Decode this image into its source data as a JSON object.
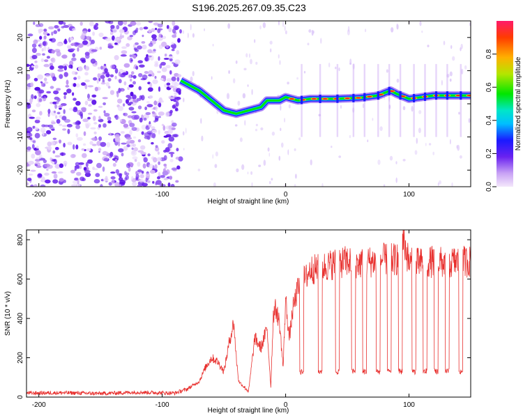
{
  "title": "S196.2025.267.09.35.C23",
  "colors": {
    "axis": "#000000",
    "snr_line": "#e8302e",
    "background": "#ffffff"
  },
  "chart_data": [
    {
      "type": "heatmap",
      "name": "spectrogram",
      "xlabel": "Height of straight line (km)",
      "ylabel": "Frequency (Hz)",
      "xlim": [
        -210,
        150
      ],
      "ylim": [
        -25,
        25
      ],
      "x_ticks": [
        -200,
        -100,
        0,
        100
      ],
      "y_ticks": [
        -20,
        -10,
        0,
        10,
        20
      ],
      "x_tick_labels": [
        "-200",
        "-100",
        "0",
        "100"
      ],
      "y_tick_labels": [
        "-20",
        "-10",
        "0",
        "10",
        "20"
      ],
      "noise_region_km": [
        -210,
        -85
      ],
      "ridge": {
        "description": "dominant frequency ridge",
        "x_km": [
          -85,
          -70,
          -60,
          -50,
          -40,
          -30,
          -20,
          -15,
          -5,
          0,
          10,
          20,
          40,
          60,
          75,
          85,
          90,
          100,
          120,
          150
        ],
        "freq_hz": [
          7,
          4,
          1,
          -2,
          -3,
          -2,
          -1,
          1,
          1,
          2,
          1,
          1.5,
          1.5,
          1.8,
          2.5,
          4,
          3,
          1.5,
          2.5,
          2.5
        ]
      },
      "colorbar": {
        "label": "Normalized spectral amplitude",
        "range": [
          0,
          1
        ],
        "ticks": [
          0.0,
          0.2,
          0.4,
          0.6,
          0.8
        ],
        "tick_labels": [
          "0.0",
          "0.2",
          "0.4",
          "0.6",
          "0.8"
        ]
      }
    },
    {
      "type": "line",
      "name": "snr",
      "xlabel": "Height of straight line (km)",
      "ylabel": "SNR (10 * v/v)",
      "xlim": [
        -210,
        150
      ],
      "ylim": [
        0,
        850
      ],
      "x_ticks": [
        -200,
        -100,
        0,
        100
      ],
      "y_ticks": [
        0,
        200,
        400,
        600,
        800
      ],
      "x_tick_labels": [
        "-200",
        "-100",
        "0",
        "100"
      ],
      "y_tick_labels": [
        "0",
        "200",
        "400",
        "600",
        "800"
      ],
      "series": [
        {
          "name": "SNR",
          "x": [
            -210,
            -180,
            -150,
            -120,
            -90,
            -80,
            -70,
            -65,
            -60,
            -55,
            -50,
            -45,
            -42,
            -40,
            -38,
            -35,
            -30,
            -25,
            -20,
            -15,
            -12,
            -10,
            -8,
            -5,
            -2,
            0,
            3,
            6,
            10,
            13,
            16,
            20,
            25,
            30,
            40,
            50,
            60,
            70,
            80,
            90,
            95,
            100,
            110,
            120,
            130,
            140,
            150
          ],
          "y": [
            20,
            22,
            18,
            25,
            20,
            40,
            80,
            150,
            200,
            180,
            130,
            300,
            380,
            200,
            80,
            60,
            30,
            300,
            250,
            350,
            50,
            420,
            450,
            380,
            150,
            500,
            300,
            450,
            550,
            600,
            600,
            650,
            650,
            660,
            680,
            690,
            680,
            690,
            700,
            700,
            820,
            680,
            680,
            690,
            680,
            690,
            690
          ]
        }
      ],
      "dropouts": {
        "description": "periodic sharp drops to ~130",
        "x_km": [
          13,
          28,
          42,
          55,
          64,
          75,
          84,
          93,
          104,
          113,
          122,
          131,
          142
        ],
        "low_value": 130
      }
    }
  ]
}
